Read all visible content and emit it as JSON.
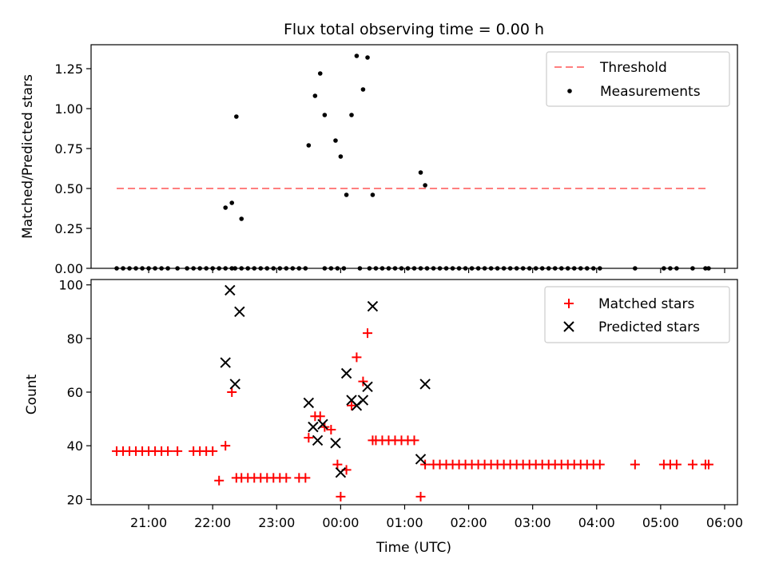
{
  "title": "Flux total observing time = 0.00 h",
  "chart_data": [
    {
      "type": "scatter",
      "name": "ratio-panel",
      "ylabel": "Matched/Predicted stars",
      "xlim": [
        20.1,
        30.2
      ],
      "ylim": [
        0,
        1.4
      ],
      "yticks": [
        0,
        0.25,
        0.5,
        0.75,
        1.0,
        1.25
      ],
      "yticklabels": [
        "0.00",
        "0.25",
        "0.50",
        "0.75",
        "1.00",
        "1.25"
      ],
      "threshold": {
        "label": "Threshold",
        "value": 0.5,
        "x_range": [
          20.5,
          29.75
        ],
        "color": "#ff7f7f"
      },
      "measurements": {
        "label": "Measurements",
        "color": "#000000",
        "x": [
          20.5,
          20.6,
          20.7,
          20.8,
          20.9,
          21.0,
          21.1,
          21.2,
          21.3,
          21.45,
          21.6,
          21.7,
          21.8,
          21.9,
          22.0,
          22.1,
          22.2,
          22.3,
          22.35,
          22.45,
          22.55,
          22.65,
          22.75,
          22.85,
          22.95,
          23.05,
          23.15,
          23.25,
          23.35,
          23.45,
          23.75,
          23.85,
          23.95,
          24.05,
          24.3,
          24.45,
          24.55,
          24.65,
          24.75,
          24.85,
          24.95,
          25.05,
          25.15,
          25.25,
          25.35,
          25.45,
          25.55,
          25.65,
          25.75,
          25.85,
          25.95,
          26.05,
          26.15,
          26.25,
          26.35,
          26.45,
          26.55,
          26.65,
          26.75,
          26.85,
          26.95,
          27.05,
          27.15,
          27.25,
          27.35,
          27.45,
          27.55,
          27.65,
          27.75,
          27.85,
          27.95,
          28.05,
          28.6,
          29.05,
          29.15,
          29.25,
          29.5,
          29.7,
          29.75,
          22.2,
          22.3,
          22.37,
          22.45,
          23.5,
          23.6,
          23.68,
          23.75,
          23.92,
          24.0,
          24.09,
          24.17,
          24.25,
          24.35,
          24.42,
          24.5,
          25.25,
          25.32
        ],
        "y": [
          0,
          0,
          0,
          0,
          0,
          0,
          0,
          0,
          0,
          0,
          0,
          0,
          0,
          0,
          0,
          0,
          0,
          0,
          0,
          0,
          0,
          0,
          0,
          0,
          0,
          0,
          0,
          0,
          0,
          0,
          0,
          0,
          0,
          0,
          0,
          0,
          0,
          0,
          0,
          0,
          0,
          0,
          0,
          0,
          0,
          0,
          0,
          0,
          0,
          0,
          0,
          0,
          0,
          0,
          0,
          0,
          0,
          0,
          0,
          0,
          0,
          0,
          0,
          0,
          0,
          0,
          0,
          0,
          0,
          0,
          0,
          0,
          0,
          0,
          0,
          0,
          0,
          0,
          0,
          0.38,
          0.41,
          0.95,
          0.31,
          0.77,
          1.08,
          1.22,
          0.96,
          0.8,
          0.7,
          0.46,
          0.96,
          1.33,
          1.12,
          1.32,
          0.46,
          0.6,
          0.52
        ]
      }
    },
    {
      "type": "scatter",
      "name": "count-panel",
      "xlabel": "Time (UTC)",
      "ylabel": "Count",
      "xlim": [
        20.1,
        30.2
      ],
      "ylim": [
        18,
        102
      ],
      "yticks": [
        20,
        40,
        60,
        80,
        100
      ],
      "yticklabels": [
        "20",
        "40",
        "60",
        "80",
        "100"
      ],
      "xticks": [
        21,
        22,
        23,
        24,
        25,
        26,
        27,
        28,
        29,
        30
      ],
      "xticklabels": [
        "21:00",
        "22:00",
        "23:00",
        "00:00",
        "01:00",
        "02:00",
        "03:00",
        "04:00",
        "05:00",
        "06:00"
      ],
      "matched": {
        "label": "Matched stars",
        "color": "#ff0000",
        "x": [
          20.5,
          20.6,
          20.7,
          20.8,
          20.9,
          21.0,
          21.1,
          21.2,
          21.3,
          21.45,
          21.7,
          21.8,
          21.9,
          22.0,
          22.1,
          22.2,
          22.3,
          22.37,
          22.45,
          22.55,
          22.65,
          22.75,
          22.85,
          22.95,
          23.05,
          23.15,
          23.35,
          23.45,
          23.5,
          23.6,
          23.68,
          23.75,
          23.85,
          23.95,
          24.0,
          24.09,
          24.17,
          24.25,
          24.35,
          24.42,
          24.5,
          24.55,
          24.65,
          24.75,
          24.85,
          24.95,
          25.05,
          25.15,
          25.25,
          25.32,
          25.45,
          25.55,
          25.65,
          25.75,
          25.85,
          25.95,
          26.05,
          26.15,
          26.25,
          26.35,
          26.45,
          26.55,
          26.65,
          26.75,
          26.85,
          26.95,
          27.05,
          27.15,
          27.25,
          27.35,
          27.45,
          27.55,
          27.65,
          27.75,
          27.85,
          27.95,
          28.05,
          28.6,
          29.05,
          29.15,
          29.25,
          29.5,
          29.7,
          29.75
        ],
        "y": [
          38,
          38,
          38,
          38,
          38,
          38,
          38,
          38,
          38,
          38,
          38,
          38,
          38,
          38,
          27,
          40,
          60,
          28,
          28,
          28,
          28,
          28,
          28,
          28,
          28,
          28,
          28,
          28,
          43,
          51,
          51,
          47,
          46,
          33,
          21,
          31,
          55,
          73,
          64,
          82,
          42,
          42,
          42,
          42,
          42,
          42,
          42,
          42,
          21,
          33,
          33,
          33,
          33,
          33,
          33,
          33,
          33,
          33,
          33,
          33,
          33,
          33,
          33,
          33,
          33,
          33,
          33,
          33,
          33,
          33,
          33,
          33,
          33,
          33,
          33,
          33,
          33,
          33,
          33,
          33,
          33,
          33,
          33,
          33
        ]
      },
      "predicted": {
        "label": "Predicted stars",
        "color": "#000000",
        "x": [
          22.2,
          22.27,
          22.35,
          22.42,
          23.5,
          23.57,
          23.64,
          23.72,
          23.92,
          24.0,
          24.09,
          24.17,
          24.25,
          24.35,
          24.42,
          24.5,
          25.25,
          25.32
        ],
        "y": [
          71,
          98,
          63,
          90,
          56,
          47,
          42,
          48,
          41,
          30,
          67,
          57,
          55,
          57,
          62,
          92,
          35,
          63
        ]
      }
    }
  ]
}
